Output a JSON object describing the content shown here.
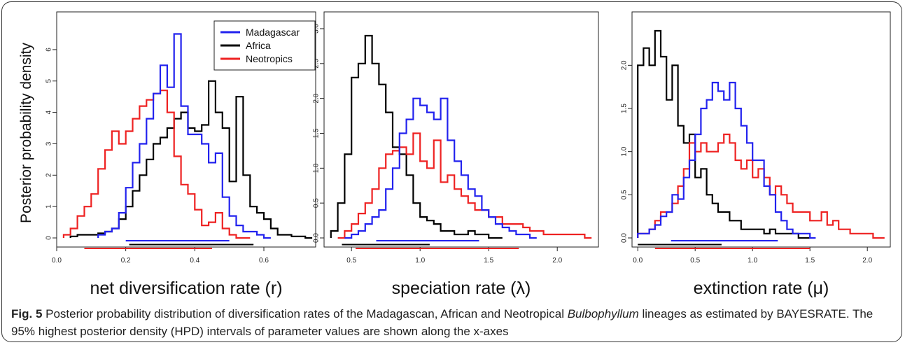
{
  "figure": {
    "ylabel": "Posterior probability density",
    "legend": {
      "placement": "top-right of first panel",
      "entries": [
        {
          "label": "Madagascar",
          "color": "#2222ee"
        },
        {
          "label": "Africa",
          "color": "#000000"
        },
        {
          "label": "Neotropics",
          "color": "#ee2222"
        }
      ]
    }
  },
  "caption": {
    "label": "Fig. 5",
    "text_before": " Posterior probability distribution of diversification rates of the Madagascan, African and Neotropical ",
    "genus": "Bulbophyllum",
    "text_after": " lineages as estimated by BAYESRATE. The 95% highest posterior density (HPD) intervals of parameter values are shown along the x-axes"
  },
  "chart_data": [
    {
      "type": "line",
      "subtype": "step-histogram",
      "xlabel": "net diversification rate (r)",
      "xlim": [
        0.0,
        0.75
      ],
      "ylim": [
        0,
        6.6
      ],
      "xticks": [
        "0.0",
        "0.2",
        "0.4",
        "0.6"
      ],
      "yticks": [
        "0",
        "1",
        "2",
        "3",
        "4",
        "5",
        "6"
      ],
      "series": [
        {
          "name": "Madagascar",
          "color": "#2222ee",
          "x": [
            0.12,
            0.14,
            0.16,
            0.18,
            0.2,
            0.22,
            0.24,
            0.26,
            0.28,
            0.3,
            0.32,
            0.34,
            0.36,
            0.38,
            0.4,
            0.42,
            0.44,
            0.46,
            0.48,
            0.5,
            0.52,
            0.54,
            0.56,
            0.58,
            0.6
          ],
          "y": [
            0.1,
            0.2,
            0.3,
            0.8,
            1.6,
            2.4,
            3.0,
            3.8,
            4.6,
            5.5,
            4.8,
            6.5,
            4.2,
            3.3,
            3.3,
            3.0,
            2.4,
            2.7,
            1.3,
            0.7,
            0.4,
            0.2,
            0.2,
            0.1,
            0.0
          ]
        },
        {
          "name": "Africa",
          "color": "#000000",
          "x": [
            0.04,
            0.06,
            0.08,
            0.1,
            0.12,
            0.14,
            0.16,
            0.18,
            0.2,
            0.22,
            0.24,
            0.26,
            0.28,
            0.3,
            0.32,
            0.34,
            0.36,
            0.38,
            0.4,
            0.42,
            0.44,
            0.46,
            0.48,
            0.5,
            0.52,
            0.54,
            0.56,
            0.58,
            0.6,
            0.62,
            0.64,
            0.66,
            0.68,
            0.7,
            0.72
          ],
          "y": [
            0.05,
            0.1,
            0.1,
            0.1,
            0.15,
            0.2,
            0.3,
            0.6,
            1.0,
            1.5,
            2.0,
            2.5,
            3.0,
            3.2,
            3.5,
            3.8,
            4.0,
            3.5,
            3.4,
            3.6,
            5.0,
            4.0,
            3.5,
            1.8,
            4.5,
            2.0,
            1.0,
            0.8,
            0.6,
            0.3,
            0.1,
            0.1,
            0.05,
            0.05,
            0.0
          ]
        },
        {
          "name": "Neotropics",
          "color": "#ee2222",
          "x": [
            0.02,
            0.04,
            0.06,
            0.08,
            0.1,
            0.12,
            0.14,
            0.16,
            0.18,
            0.2,
            0.22,
            0.24,
            0.26,
            0.28,
            0.3,
            0.32,
            0.34,
            0.36,
            0.38,
            0.4,
            0.42,
            0.44,
            0.46,
            0.48,
            0.5,
            0.52,
            0.54
          ],
          "y": [
            0.1,
            0.3,
            0.7,
            1.0,
            1.4,
            2.2,
            2.8,
            3.4,
            3.0,
            3.4,
            3.8,
            4.2,
            4.4,
            4.6,
            4.7,
            4.0,
            2.6,
            1.7,
            1.4,
            0.9,
            0.4,
            0.5,
            0.8,
            0.3,
            0.1,
            0.0,
            0.0
          ]
        }
      ],
      "hpd_intervals": [
        {
          "series": "Madagascar",
          "low": 0.2,
          "high": 0.5
        },
        {
          "series": "Africa",
          "low": 0.21,
          "high": 0.57
        },
        {
          "series": "Neotropics",
          "low": 0.08,
          "high": 0.45
        }
      ]
    },
    {
      "type": "line",
      "subtype": "step-histogram",
      "xlabel": "speciation rate (λ)",
      "xlim": [
        0.3,
        2.3
      ],
      "ylim": [
        0,
        3.05
      ],
      "xticks": [
        "0.5",
        "1.0",
        "1.5",
        "2.0"
      ],
      "yticks": [
        "0.0",
        "0.5",
        "1.0",
        "1.5",
        "2.0",
        "2.5",
        "3.0"
      ],
      "series": [
        {
          "name": "Madagascar",
          "color": "#2222ee",
          "x": [
            0.45,
            0.5,
            0.55,
            0.6,
            0.65,
            0.7,
            0.75,
            0.8,
            0.85,
            0.9,
            0.95,
            1.0,
            1.05,
            1.1,
            1.15,
            1.2,
            1.25,
            1.3,
            1.35,
            1.4,
            1.45,
            1.5,
            1.55,
            1.6,
            1.65,
            1.7,
            1.75,
            1.8
          ],
          "y": [
            0.0,
            0.05,
            0.1,
            0.2,
            0.3,
            0.4,
            0.7,
            1.0,
            1.5,
            1.7,
            2.0,
            1.9,
            1.8,
            1.7,
            2.0,
            1.4,
            1.1,
            0.9,
            0.7,
            0.6,
            0.4,
            0.3,
            0.2,
            0.15,
            0.1,
            0.05,
            0.05,
            0.0
          ]
        },
        {
          "name": "Africa",
          "color": "#000000",
          "x": [
            0.35,
            0.4,
            0.45,
            0.5,
            0.55,
            0.6,
            0.65,
            0.7,
            0.75,
            0.8,
            0.85,
            0.9,
            0.95,
            1.0,
            1.05,
            1.1,
            1.15,
            1.2,
            1.25,
            1.3,
            1.35,
            1.4,
            1.45,
            1.5,
            1.55
          ],
          "y": [
            0.1,
            0.5,
            1.2,
            2.3,
            2.5,
            2.9,
            2.5,
            2.2,
            1.8,
            1.3,
            1.2,
            0.9,
            0.5,
            0.3,
            0.25,
            0.2,
            0.1,
            0.1,
            0.05,
            0.05,
            0.1,
            0.05,
            0.05,
            0.0,
            0.0
          ]
        },
        {
          "name": "Neotropics",
          "color": "#ee2222",
          "x": [
            0.4,
            0.45,
            0.5,
            0.55,
            0.6,
            0.65,
            0.7,
            0.75,
            0.8,
            0.85,
            0.9,
            0.95,
            1.0,
            1.05,
            1.1,
            1.15,
            1.2,
            1.25,
            1.3,
            1.35,
            1.4,
            1.45,
            1.5,
            1.55,
            1.6,
            1.65,
            1.7,
            1.75,
            1.8,
            1.85,
            1.9,
            1.95,
            2.0,
            2.05,
            2.1,
            2.15,
            2.2
          ],
          "y": [
            0.0,
            0.1,
            0.2,
            0.35,
            0.5,
            0.7,
            1.0,
            1.2,
            1.25,
            1.3,
            1.2,
            1.5,
            1.1,
            1.0,
            1.4,
            0.8,
            0.9,
            0.7,
            0.6,
            0.5,
            0.4,
            0.4,
            0.3,
            0.3,
            0.2,
            0.2,
            0.2,
            0.15,
            0.1,
            0.1,
            0.05,
            0.05,
            0.05,
            0.05,
            0.05,
            0.05,
            0.0
          ]
        }
      ],
      "hpd_intervals": [
        {
          "series": "Madagascar",
          "low": 0.68,
          "high": 1.43
        },
        {
          "series": "Africa",
          "low": 0.43,
          "high": 1.07
        },
        {
          "series": "Neotropics",
          "low": 0.53,
          "high": 1.72
        }
      ]
    },
    {
      "type": "line",
      "subtype": "step-histogram",
      "xlabel": "extinction rate (μ)",
      "xlim": [
        -0.05,
        2.2
      ],
      "ylim": [
        0,
        2.4
      ],
      "xticks": [
        "0.0",
        "0.5",
        "1.0",
        "1.5",
        "2.0"
      ],
      "yticks": [
        "0.0",
        "0.5",
        "1.0",
        "1.5",
        "2.0"
      ],
      "series": [
        {
          "name": "Madagascar",
          "color": "#2222ee",
          "x": [
            0.0,
            0.05,
            0.1,
            0.15,
            0.2,
            0.25,
            0.3,
            0.35,
            0.4,
            0.45,
            0.5,
            0.55,
            0.6,
            0.65,
            0.7,
            0.75,
            0.8,
            0.85,
            0.9,
            0.95,
            1.0,
            1.05,
            1.1,
            1.15,
            1.2,
            1.25,
            1.3,
            1.35,
            1.4,
            1.45,
            1.5
          ],
          "y": [
            0.05,
            0.05,
            0.1,
            0.15,
            0.25,
            0.3,
            0.5,
            0.45,
            0.7,
            0.9,
            1.2,
            1.5,
            1.6,
            1.8,
            1.7,
            1.6,
            1.8,
            1.5,
            1.3,
            1.1,
            0.9,
            0.9,
            0.6,
            0.5,
            0.3,
            0.2,
            0.1,
            0.05,
            0.05,
            0.05,
            0.0
          ]
        },
        {
          "name": "Africa",
          "color": "#000000",
          "x": [
            0.0,
            0.05,
            0.1,
            0.15,
            0.2,
            0.25,
            0.3,
            0.35,
            0.4,
            0.45,
            0.5,
            0.55,
            0.6,
            0.65,
            0.7,
            0.75,
            0.8,
            0.85,
            0.9,
            0.95,
            1.0,
            1.05,
            1.1,
            1.15,
            1.2,
            1.25,
            1.3,
            1.35,
            1.4,
            1.45
          ],
          "y": [
            2.0,
            2.2,
            2.0,
            2.4,
            2.1,
            1.6,
            2.0,
            1.3,
            1.1,
            1.2,
            0.7,
            0.8,
            0.5,
            0.4,
            0.3,
            0.3,
            0.2,
            0.2,
            0.1,
            0.1,
            0.1,
            0.1,
            0.05,
            0.1,
            0.05,
            0.05,
            0.05,
            0.05,
            0.0,
            0.0
          ]
        },
        {
          "name": "Neotropics",
          "color": "#ee2222",
          "x": [
            0.0,
            0.05,
            0.1,
            0.15,
            0.2,
            0.25,
            0.3,
            0.35,
            0.4,
            0.45,
            0.5,
            0.55,
            0.6,
            0.65,
            0.7,
            0.75,
            0.8,
            0.85,
            0.9,
            0.95,
            1.0,
            1.05,
            1.1,
            1.15,
            1.2,
            1.25,
            1.3,
            1.35,
            1.4,
            1.45,
            1.5,
            1.55,
            1.6,
            1.65,
            1.7,
            1.75,
            1.8,
            1.85,
            1.9,
            1.95,
            2.0,
            2.05,
            2.1
          ],
          "y": [
            0.05,
            0.05,
            0.1,
            0.2,
            0.3,
            0.3,
            0.4,
            0.6,
            0.8,
            1.1,
            1.0,
            1.1,
            1.0,
            1.0,
            1.1,
            1.2,
            1.1,
            0.9,
            0.8,
            0.9,
            0.7,
            0.8,
            0.7,
            0.5,
            0.6,
            0.5,
            0.4,
            0.3,
            0.3,
            0.3,
            0.2,
            0.2,
            0.3,
            0.15,
            0.2,
            0.1,
            0.1,
            0.05,
            0.05,
            0.05,
            0.05,
            0.0,
            0.0
          ]
        }
      ],
      "hpd_intervals": [
        {
          "series": "Madagascar",
          "low": 0.29,
          "high": 1.22
        },
        {
          "series": "Africa",
          "low": 0.0,
          "high": 0.73
        },
        {
          "series": "Neotropics",
          "low": 0.15,
          "high": 1.5
        }
      ]
    }
  ]
}
